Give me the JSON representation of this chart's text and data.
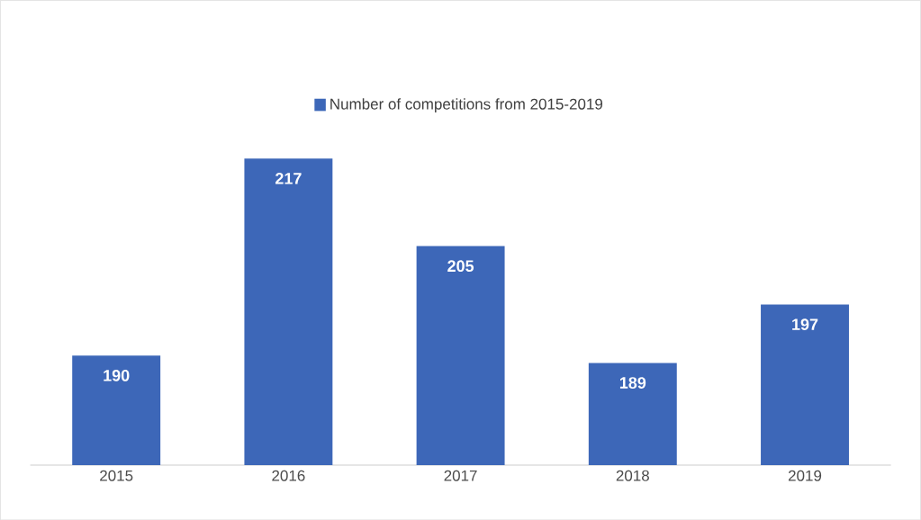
{
  "chart_data": {
    "type": "bar",
    "categories": [
      "2015",
      "2016",
      "2017",
      "2018",
      "2019"
    ],
    "series": [
      {
        "name": "Number of competitions from 2015-2019",
        "color": "#3d67b8",
        "values": [
          190,
          217,
          205,
          189,
          197
        ]
      }
    ],
    "ylim": [
      175,
      217
    ],
    "data_labels": true,
    "legend": "top"
  }
}
